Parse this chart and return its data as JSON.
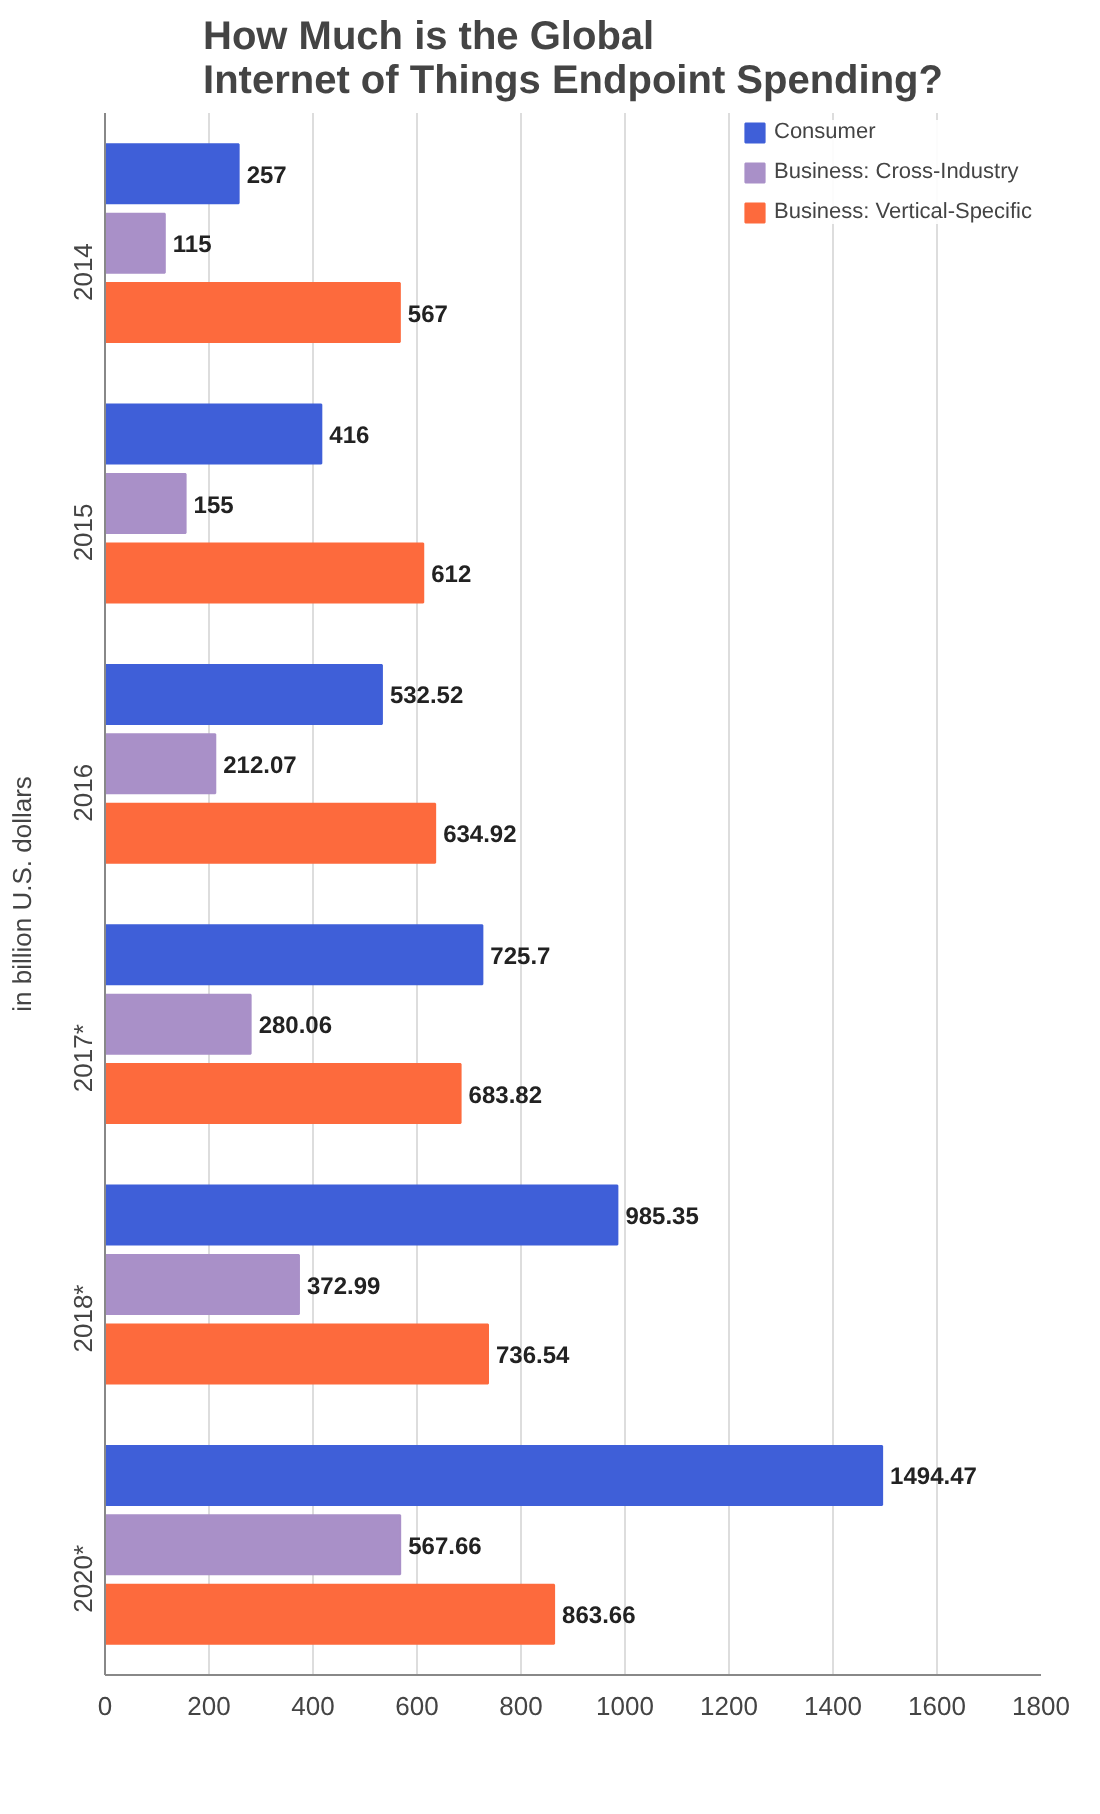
{
  "chart_data": {
    "type": "bar",
    "orientation": "horizontal",
    "title": "How Much is the Global Internet of Things Endpoint Spending?",
    "ylabel": "in billion U.S. dollars",
    "categories": [
      "2014",
      "2015",
      "2016",
      "2017*",
      "2018*",
      "2020*"
    ],
    "series": [
      {
        "name": "Consumer",
        "color": "#3f5fd8",
        "values": [
          257,
          416,
          532.52,
          725.7,
          985.35,
          1494.47
        ]
      },
      {
        "name": "Business: Cross-Industry",
        "color": "#a990c8",
        "values": [
          115,
          155,
          212.07,
          280.06,
          372.99,
          567.66
        ]
      },
      {
        "name": "Business: Vertical-Specific",
        "color": "#fd6a3d",
        "values": [
          567,
          612,
          634.92,
          683.82,
          736.54,
          863.66
        ]
      }
    ],
    "xlim": [
      0,
      1800
    ],
    "xticks": [
      0,
      200,
      400,
      600,
      800,
      1000,
      1200,
      1400,
      1600,
      1800
    ],
    "grid": "x",
    "legend": "top right",
    "data_labels": true
  }
}
